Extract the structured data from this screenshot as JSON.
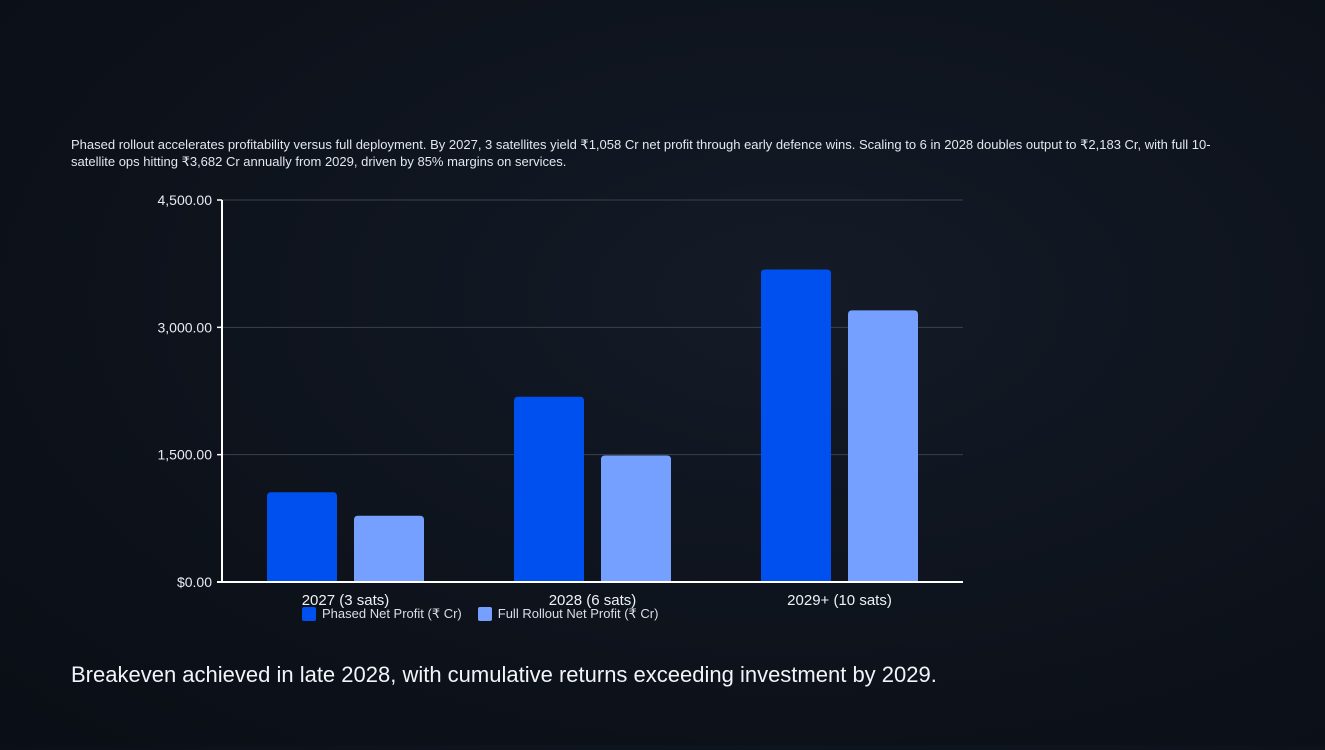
{
  "intro_text": "Phased rollout accelerates profitability versus full deployment. By 2027, 3 satellites yield ₹1,058 Cr net profit through early defence wins. Scaling to 6 in 2028 doubles output to ₹2,183 Cr, with full 10-satellite ops hitting ₹3,682 Cr annually from 2029, driven by 85% margins on services.",
  "conclusion_text": "Breakeven achieved in late 2028, with cumulative returns exceeding investment by 2029.",
  "colors": {
    "phased": "#0050f0",
    "full": "#76a0ff",
    "grid": "#3a414e",
    "axis": "#ffffff"
  },
  "chart_data": {
    "type": "bar",
    "title": "",
    "xlabel": "",
    "ylabel": "",
    "categories": [
      "2027 (3 sats)",
      "2028 (6 sats)",
      "2029+ (10 sats)"
    ],
    "series": [
      {
        "name": "Phased Net Profit (₹ Cr)",
        "values": [
          1058,
          2183,
          3682
        ]
      },
      {
        "name": "Full Rollout Net Profit (₹ Cr)",
        "values": [
          780,
          1490,
          3200
        ]
      }
    ],
    "ylim": [
      0,
      4500
    ],
    "yticks": [
      0,
      1500,
      3000,
      4500
    ],
    "ytick_labels": [
      "$0.00",
      "1,500.00",
      "3,000.00",
      "4,500.00"
    ],
    "grid": true,
    "legend_position": "bottom-left"
  }
}
